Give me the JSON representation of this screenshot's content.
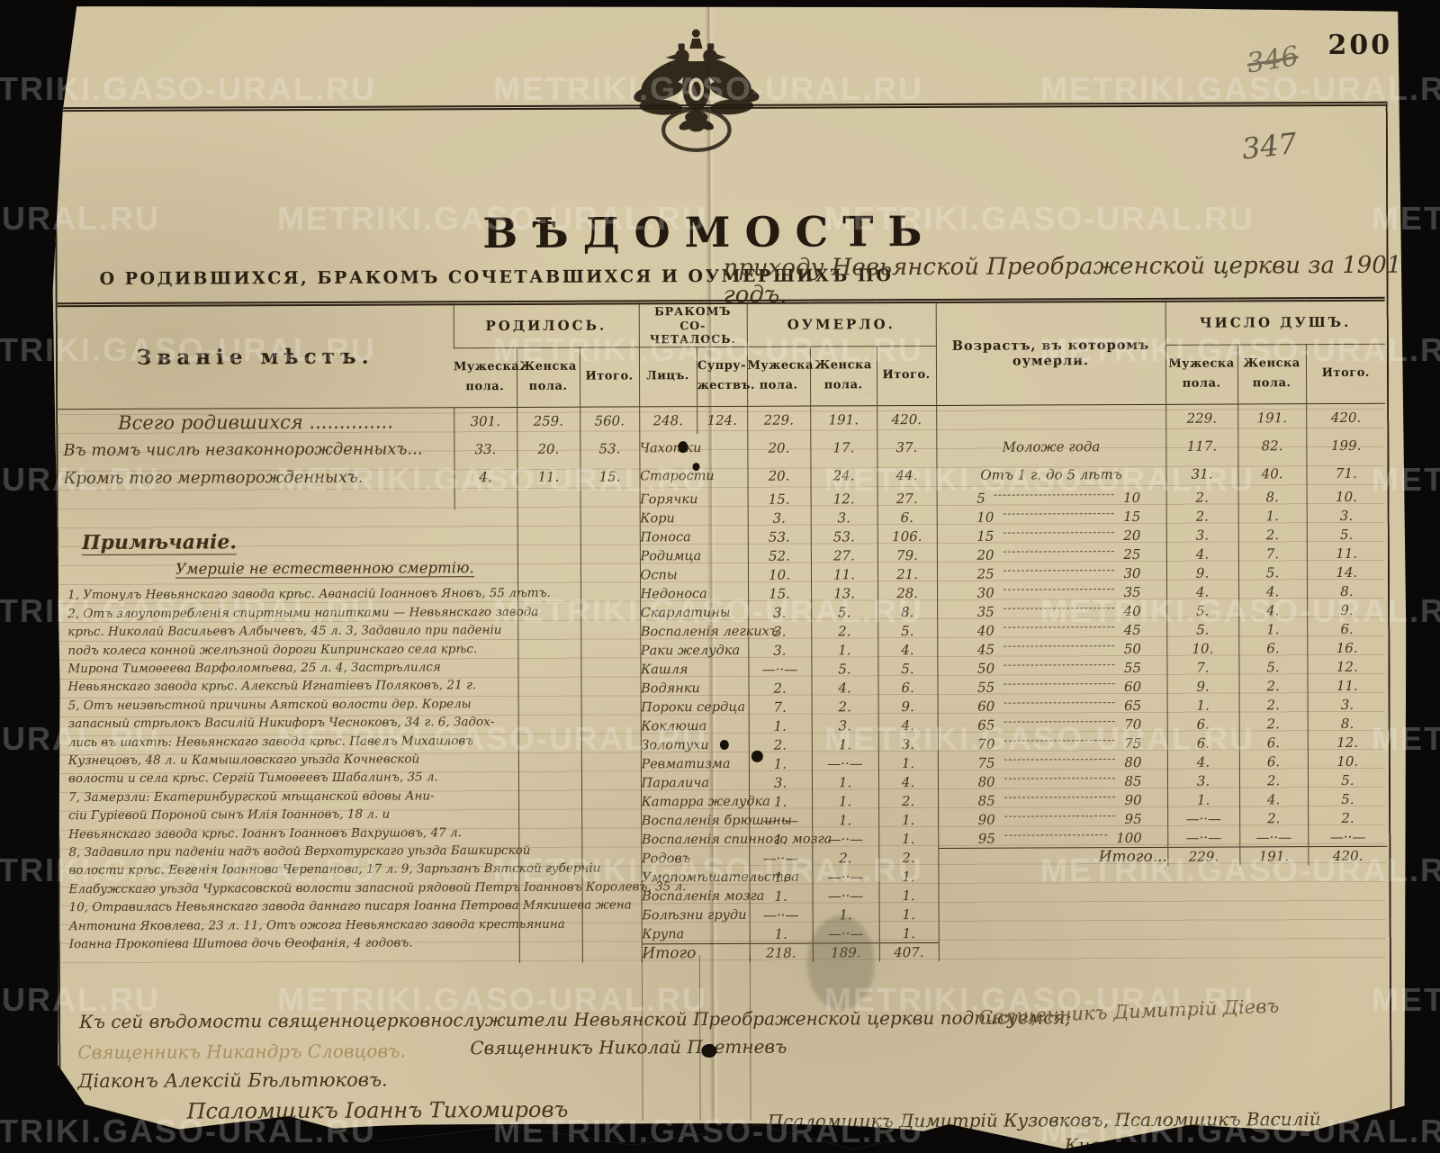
{
  "page": {
    "printed_number": "200",
    "pencil_crossed_number": "346",
    "pencil_number": "347"
  },
  "watermark": {
    "text": "METRIKI.GASO-URAL.RU"
  },
  "title": "ВѢДОМОСТЬ",
  "subtitle": {
    "printed": "О РОДИВШИХСЯ, БРАКОМЪ СОЧЕТАВШИХСЯ И ОУМЕРШИХЪ ПО",
    "handwritten": "приходу Невьянской Преображенской церкви за 1901 годъ."
  },
  "colors": {
    "paper": "#d2c4a1",
    "ink_printed": "#2a2013",
    "ink_handwritten": "#453622",
    "ink_faded": "#a08050",
    "background": "#0b0908",
    "watermark": "rgba(255,255,255,0.22)"
  },
  "table": {
    "headers": {
      "place": "Званіе мѣстъ.",
      "born": "РОДИЛОСЬ.",
      "married": "БРАКОМЪ СО- ЧЕТАЛОСЬ.",
      "died": "ОУМЕРЛО.",
      "age": "Возрастъ, въ которомъ оумерли.",
      "souls": "ЧИСЛО ДУШЪ.",
      "male": "Мужеска пола.",
      "female": "Женска пола.",
      "total": "Итого.",
      "persons": "Лицъ.",
      "couples": "Супру- жествъ."
    },
    "rows": [
      {
        "tall": true,
        "place": "Всего родившихся ..............",
        "b": [
          "301.",
          "259.",
          "560."
        ],
        "lic": "248.",
        "supr": "124.",
        "d": [
          "229.",
          "191.",
          "420."
        ],
        "age": null,
        "s": [
          "229.",
          "191.",
          "420."
        ]
      },
      {
        "tall": true,
        "place": "Въ томъ числѣ незаконнорожденныхъ...",
        "b": [
          "33.",
          "20.",
          "53."
        ],
        "cause": "Чахотки",
        "d": [
          "20.",
          "17.",
          "37."
        ],
        "age": {
          "label": "Моложе года"
        },
        "s": [
          "117.",
          "82.",
          "199."
        ]
      },
      {
        "tall": true,
        "place": "Кромѣ того мертворожденныхъ.",
        "b": [
          "4.",
          "11.",
          "15."
        ],
        "cause": "Старости",
        "d": [
          "20.",
          "24.",
          "44."
        ],
        "age": {
          "label": "Отъ 1 г. до 5 лѣтъ"
        },
        "s": [
          "31.",
          "40.",
          "71."
        ]
      },
      {
        "cause": "Горячки",
        "d": [
          "15.",
          "12.",
          "27."
        ],
        "age": {
          "from": "5",
          "to": "10"
        },
        "s": [
          "2.",
          "8.",
          "10."
        ]
      },
      {
        "cause": "Кори",
        "d": [
          "3.",
          "3.",
          "6."
        ],
        "age": {
          "from": "10",
          "to": "15"
        },
        "s": [
          "2.",
          "1.",
          "3."
        ]
      },
      {
        "cause": "Поноса",
        "d": [
          "53.",
          "53.",
          "106."
        ],
        "age": {
          "from": "15",
          "to": "20"
        },
        "s": [
          "3.",
          "2.",
          "5."
        ]
      },
      {
        "cause": "Родимца",
        "d": [
          "52.",
          "27.",
          "79."
        ],
        "age": {
          "from": "20",
          "to": "25"
        },
        "s": [
          "4.",
          "7.",
          "11."
        ]
      },
      {
        "cause": "Оспы",
        "d": [
          "10.",
          "11.",
          "21."
        ],
        "age": {
          "from": "25",
          "to": "30"
        },
        "s": [
          "9.",
          "5.",
          "14."
        ]
      },
      {
        "cause": "Недоноса",
        "d": [
          "15.",
          "13.",
          "28."
        ],
        "age": {
          "from": "30",
          "to": "35"
        },
        "s": [
          "4.",
          "4.",
          "8."
        ]
      },
      {
        "cause": "Скарлатины",
        "d": [
          "3.",
          "5.",
          "8."
        ],
        "age": {
          "from": "35",
          "to": "40"
        },
        "s": [
          "5.",
          "4.",
          "9."
        ]
      },
      {
        "cause": "Воспаленія легкихъ",
        "d": [
          "3.",
          "2.",
          "5."
        ],
        "age": {
          "from": "40",
          "to": "45"
        },
        "s": [
          "5.",
          "1.",
          "6."
        ]
      },
      {
        "cause": "Раки желудка",
        "d": [
          "3.",
          "1.",
          "4."
        ],
        "age": {
          "from": "45",
          "to": "50"
        },
        "s": [
          "10.",
          "6.",
          "16."
        ]
      },
      {
        "cause": "Кашля",
        "d": [
          "—··—",
          "5.",
          "5."
        ],
        "age": {
          "from": "50",
          "to": "55"
        },
        "s": [
          "7.",
          "5.",
          "12."
        ]
      },
      {
        "cause": "Водянки",
        "d": [
          "2.",
          "4.",
          "6."
        ],
        "age": {
          "from": "55",
          "to": "60"
        },
        "s": [
          "9.",
          "2.",
          "11."
        ]
      },
      {
        "cause": "Пороки сердца",
        "d": [
          "7.",
          "2.",
          "9."
        ],
        "age": {
          "from": "60",
          "to": "65"
        },
        "s": [
          "1.",
          "2.",
          "3."
        ]
      },
      {
        "cause": "Коклюша",
        "d": [
          "1.",
          "3.",
          "4."
        ],
        "age": {
          "from": "65",
          "to": "70"
        },
        "s": [
          "6.",
          "2.",
          "8."
        ]
      },
      {
        "cause": "Золотухи",
        "d": [
          "2.",
          "1.",
          "3."
        ],
        "age": {
          "from": "70",
          "to": "75"
        },
        "s": [
          "6.",
          "6.",
          "12."
        ]
      },
      {
        "cause": "Ревматизма",
        "d": [
          "1.",
          "—··—",
          "1."
        ],
        "age": {
          "from": "75",
          "to": "80"
        },
        "s": [
          "4.",
          "6.",
          "10."
        ]
      },
      {
        "cause": "Паралича",
        "d": [
          "3.",
          "1.",
          "4."
        ],
        "age": {
          "from": "80",
          "to": "85"
        },
        "s": [
          "3.",
          "2.",
          "5."
        ]
      },
      {
        "cause": "Катарра желудка",
        "d": [
          "1.",
          "1.",
          "2."
        ],
        "age": {
          "from": "85",
          "to": "90"
        },
        "s": [
          "1.",
          "4.",
          "5."
        ]
      },
      {
        "cause": "Воспаленія брюшины",
        "d": [
          "—··—",
          "1.",
          "1."
        ],
        "age": {
          "from": "90",
          "to": "95"
        },
        "s": [
          "—··—",
          "2.",
          "2."
        ]
      },
      {
        "cause": "Воспаленія спинного мозга",
        "d": [
          "1.",
          "—··—",
          "1."
        ],
        "age": {
          "from": "95",
          "to": "100"
        },
        "s": [
          "—··—",
          "—··—",
          "—··—"
        ]
      },
      {
        "cause": "Родовъ",
        "d": [
          "—··—",
          "2.",
          "2."
        ],
        "age": {
          "label": "Итого...",
          "itogo": true
        },
        "strongS": true,
        "s": [
          "229.",
          "191.",
          "420."
        ]
      },
      {
        "cause": "Умопомѣшательства",
        "d": [
          "1.",
          "—··—",
          "1."
        ],
        "age": null,
        "sOpen": true,
        "s": [
          "",
          "",
          ""
        ]
      },
      {
        "cause": "Воспаленія мозга",
        "d": [
          "1.",
          "—··—",
          "1."
        ],
        "age": null,
        "sOpen": true,
        "s": [
          "",
          "",
          ""
        ]
      },
      {
        "cause": "Болѣзни груди",
        "d": [
          "—··—",
          "1.",
          "1."
        ],
        "age": null,
        "sOpen": true,
        "s": [
          "",
          "",
          ""
        ]
      },
      {
        "cause": "Крупа",
        "d": [
          "1.",
          "—··—",
          "1."
        ],
        "age": null,
        "sOpen": true,
        "s": [
          "",
          "",
          ""
        ]
      },
      {
        "cause": "Итого",
        "strong": true,
        "d": [
          "218.",
          "189.",
          "407."
        ],
        "age": null,
        "sOpen": true,
        "s": [
          "",
          "",
          ""
        ]
      }
    ]
  },
  "note": {
    "heading": "Примѣчаніе.",
    "subheading": "Умершіе не естественною смертію.",
    "lines": [
      "1, Утонулъ Невьянскаго завода крѣс. Аѳанасій Іоанновъ Яновъ, 55 лѣтъ.",
      "2, Отъ злоупотребленія спиртными напитками — Невьянскаго завода",
      "крѣс. Николай Васильевъ Албычевъ, 45 л. 3, Задавило при паденіи",
      "подъ колеса конной желѣзной дороги Кипринскаго села крѣс.",
      "Мирона Тимоѳеева Варфоломѣева, 25 л. 4, Застрѣлился",
      "Невьянскаго завода крѣс. Алексѣй Игнатіевъ Поляковъ, 21 г.",
      "5, Отъ неизвѣстной причины Аятской волости дер. Корелы",
      "запасный стрѣлокъ Василій Никифоръ Чесноковъ, 34 г. 6, Задох-",
      "лись въ шахтѣ: Невьянскаго завода крѣс. Павелъ Михаиловъ",
      "Кузнецовъ, 48 л. и Камышловскаго уѣзда Кочневской",
      "волости и села крѣс. Сергій Тимоѳеевъ Шабалинъ, 35 л.",
      "7, Замерзли: Екатеринбургской мѣщанской вдовы Ани-",
      "сіи Гуріевой Пороной сынъ Илія Іоанновъ, 18 л. и",
      "Невьянскаго завода крѣс. Іоаннъ Іоанновъ Вахрушовъ, 47 л.",
      "8, Задавило при паденіи надъ водой Верхотурскаго уѣзда Башкирской",
      "волости крѣс. Евгенія Іоаннова Черепанова, 17 л. 9, Зарѣзанъ Вятской губерніи",
      "Елабужскаго уѣзда Чуркасовской волости запасной рядовой Петръ Іоанновъ Королевъ, 35 л.",
      "10, Отравилась Невьянскаго завода даннаго писаря Іоанна Петрова Мякишева жена",
      "Антонина Яковлева, 23 л. 11, Отъ ожога Невьянскаго завода крестьянина",
      "Іоанна Прокопіева Шитова дочь Ѳеофанія, 4 годовъ."
    ]
  },
  "signatures": {
    "attestation": "Къ сей вѣдомости священноцерковнослужители Невьянской Преображенской церкви подписуемся;",
    "priest_right": "Священникъ Димитрій Діевъ",
    "priest_faded": "Священникъ Никандръ Словцовъ.",
    "priest_2": "Священникъ Николай Плетневъ",
    "deacon": "Діаконъ Алексій Бѣльтюковъ.",
    "psalmist_1": "Псаломщикъ Іоаннъ Тихомировъ",
    "psalmist_2": "Псаломщикъ Димитрій Кузовковъ, Псаломщикъ Василій",
    "psalmist_2b": "Киселевъ."
  }
}
